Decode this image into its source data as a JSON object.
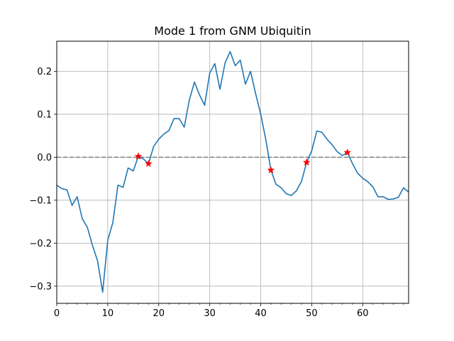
{
  "chart_data": {
    "type": "line",
    "title": "Mode 1 from GNM Ubiquitin",
    "xlabel": "",
    "ylabel": "",
    "xlim": [
      0,
      69
    ],
    "ylim": [
      -0.34,
      0.27
    ],
    "xticks": [
      0,
      10,
      20,
      30,
      40,
      50,
      60
    ],
    "xtick_labels": [
      "0",
      "10",
      "20",
      "30",
      "40",
      "50",
      "60"
    ],
    "yticks": [
      -0.3,
      -0.2,
      -0.1,
      0.0,
      0.1,
      0.2
    ],
    "ytick_labels": [
      "−0.3",
      "−0.2",
      "−0.1",
      "0.0",
      "0.1",
      "0.2"
    ],
    "grid": true,
    "reference_line": {
      "y": 0.0,
      "style": "dashed",
      "color": "#808080"
    },
    "series": [
      {
        "color": "#1f77b4",
        "x": [
          0,
          1,
          2,
          3,
          4,
          5,
          6,
          7,
          8,
          9,
          10,
          11,
          12,
          13,
          14,
          15,
          16,
          17,
          18,
          19,
          20,
          21,
          22,
          23,
          24,
          25,
          26,
          27,
          28,
          29,
          30,
          31,
          32,
          33,
          34,
          35,
          36,
          37,
          38,
          39,
          40,
          41,
          42,
          43,
          44,
          45,
          46,
          47,
          48,
          49,
          50,
          51,
          52,
          53,
          54,
          55,
          56,
          57,
          58,
          59,
          60,
          61,
          62,
          63,
          64,
          65,
          66,
          67,
          68,
          69
        ],
        "y": [
          -0.065,
          -0.073,
          -0.076,
          -0.112,
          -0.092,
          -0.143,
          -0.163,
          -0.205,
          -0.241,
          -0.314,
          -0.193,
          -0.152,
          -0.065,
          -0.07,
          -0.025,
          -0.032,
          0.002,
          -0.004,
          -0.015,
          0.025,
          0.042,
          0.054,
          0.062,
          0.09,
          0.09,
          0.07,
          0.133,
          0.175,
          0.145,
          0.121,
          0.196,
          0.218,
          0.158,
          0.219,
          0.246,
          0.213,
          0.226,
          0.17,
          0.2,
          0.148,
          0.1,
          0.041,
          -0.03,
          -0.063,
          -0.071,
          -0.085,
          -0.089,
          -0.078,
          -0.056,
          -0.012,
          0.015,
          0.061,
          0.058,
          0.042,
          0.029,
          0.013,
          0.004,
          0.011,
          -0.015,
          -0.037,
          -0.049,
          -0.057,
          -0.069,
          -0.092,
          -0.092,
          -0.098,
          -0.097,
          -0.093,
          -0.071,
          -0.081
        ]
      }
    ],
    "markers": {
      "color": "#ff0000",
      "shape": "star",
      "points": [
        {
          "x": 16,
          "y": 0.002
        },
        {
          "x": 18,
          "y": -0.015
        },
        {
          "x": 42,
          "y": -0.03
        },
        {
          "x": 49,
          "y": -0.012
        },
        {
          "x": 57,
          "y": 0.011
        }
      ]
    }
  }
}
